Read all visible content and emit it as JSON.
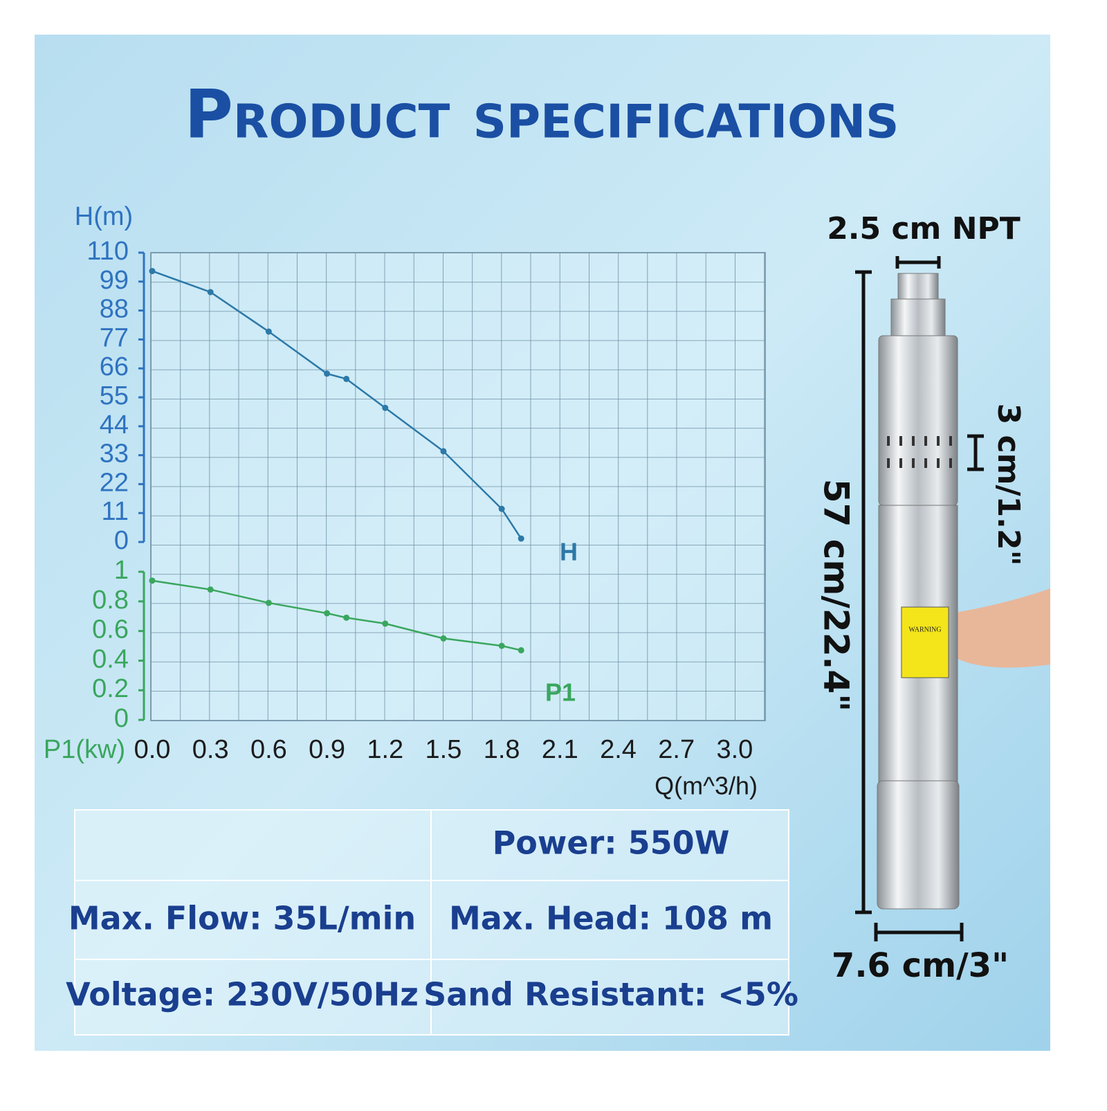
{
  "header": {
    "title": "Product specifications"
  },
  "chart_data": [
    {
      "type": "line",
      "ylabel": "H(m)",
      "ylim": [
        0,
        110
      ],
      "yticks": [
        0,
        11,
        22,
        33,
        44,
        55,
        66,
        77,
        88,
        99,
        110
      ],
      "xlim": [
        0,
        3.15
      ],
      "x": [
        0,
        0.3,
        0.6,
        0.9,
        1.0,
        1.2,
        1.5,
        1.8,
        1.9
      ],
      "series": [
        {
          "name": "H",
          "color": "#2c79a8",
          "values": [
            103,
            95,
            80,
            64,
            62,
            51,
            34.5,
            12.6,
            1.3
          ]
        }
      ],
      "axis_color": "#2f73c0"
    },
    {
      "type": "line",
      "ylabel": "P1(kw)",
      "xlabel": "Q(m^3/h)",
      "ylim": [
        0,
        1
      ],
      "yticks": [
        0,
        0.2,
        0.4,
        0.6,
        0.8,
        1
      ],
      "xlim": [
        0,
        3.15
      ],
      "xticks": [
        {
          "value": 0,
          "label": "0.0"
        },
        0.3,
        0.6,
        0.9,
        1.2,
        1.5,
        1.8,
        2.1,
        2.4,
        2.7,
        {
          "value": 3,
          "label": "3.0"
        }
      ],
      "x": [
        0,
        0.3,
        0.6,
        0.9,
        1.0,
        1.2,
        1.5,
        1.8,
        1.9
      ],
      "series": [
        {
          "name": "P1",
          "color": "#3aa65e",
          "values": [
            0.94,
            0.88,
            0.79,
            0.72,
            0.69,
            0.65,
            0.55,
            0.5,
            0.47
          ]
        }
      ],
      "axis_color": "#3aa65e"
    }
  ],
  "specs": [
    "Power: 550W",
    "Max. Flow: 35L/min",
    "Max. Head: 108 m",
    "Voltage: 230V/50Hz",
    "Sand Resistant: <5%"
  ],
  "dimensions": {
    "outlet": "2.5 cm NPT",
    "inlet_slot": "3 cm/1.2\"",
    "length": "57 cm/22.4\"",
    "diameter": "7.6 cm/3\""
  },
  "pump_label": "WARNING"
}
